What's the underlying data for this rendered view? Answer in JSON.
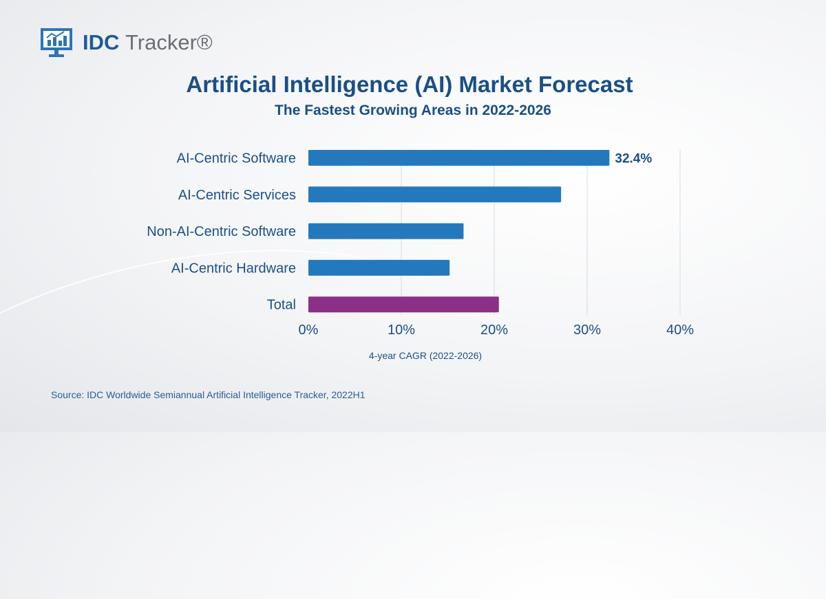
{
  "logo": {
    "brand": "IDC",
    "product": "Tracker®"
  },
  "chart_data": {
    "type": "bar",
    "orientation": "horizontal",
    "title": "Artificial Intelligence (AI) Market Forecast",
    "subtitle": "The Fastest Growing Areas in 2022-2026",
    "categories": [
      "AI-Centric Software",
      "AI-Centric Services",
      "Non-AI-Centric Software",
      "AI-Centric Hardware",
      "Total"
    ],
    "values": [
      32.4,
      27.2,
      16.7,
      15.2,
      20.5
    ],
    "data_labels": [
      "32.4%",
      "",
      "",
      "",
      ""
    ],
    "colors": [
      "#2479bd",
      "#2479bd",
      "#2479bd",
      "#2479bd",
      "#8b3086"
    ],
    "xlabel": "4-year CAGR (2022-2026)",
    "ylabel": "",
    "xlim": [
      0,
      40
    ],
    "xticks": [
      0,
      10,
      20,
      30,
      40
    ],
    "xtick_labels": [
      "0%",
      "10%",
      "20%",
      "30%",
      "40%"
    ],
    "grid": true
  },
  "source": "Source: IDC Worldwide Semiannual Artificial Intelligence Tracker, 2022H1"
}
